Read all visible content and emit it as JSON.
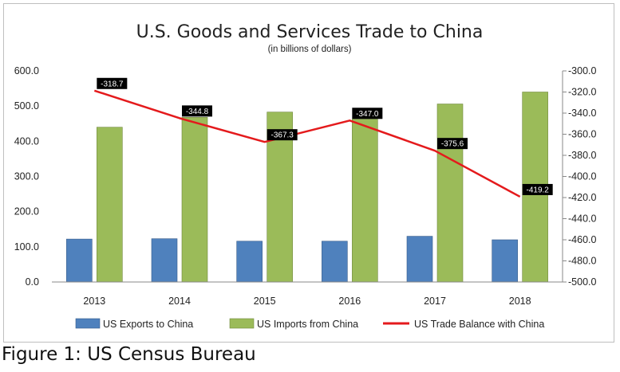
{
  "caption": "Figure 1: US Census Bureau",
  "chart_data": {
    "type": "bar",
    "title": "U.S. Goods and Services Trade  to China",
    "subtitle": "(in billions of dollars)",
    "categories": [
      "2013",
      "2014",
      "2015",
      "2016",
      "2017",
      "2018"
    ],
    "series": [
      {
        "name": "US Exports to China",
        "type": "bar",
        "axis": "left",
        "color": "#4f81bd",
        "values": [
          122.0,
          123.0,
          116.0,
          116.0,
          130.0,
          120.0
        ]
      },
      {
        "name": "US Imports from China",
        "type": "bar",
        "axis": "left",
        "color": "#9bbb59",
        "values": [
          440.0,
          468.0,
          483.0,
          463.0,
          506.0,
          540.0
        ]
      },
      {
        "name": "US Trade Balance with China",
        "type": "line",
        "axis": "right",
        "color": "#e41a1c",
        "values": [
          -318.7,
          -344.8,
          -367.3,
          -347.0,
          -375.6,
          -419.2
        ],
        "labels": [
          "-318.7",
          "-344.8",
          "-367.3",
          "-347.0",
          "-375.6",
          "-419.2"
        ]
      }
    ],
    "left_axis": {
      "min": 0,
      "max": 600,
      "step": 100,
      "ticks": [
        "0.0",
        "100.0",
        "200.0",
        "300.0",
        "400.0",
        "500.0",
        "600.0"
      ]
    },
    "right_axis": {
      "min": -500,
      "max": -300,
      "step": 20,
      "ticks": [
        "-500.0",
        "-480.0",
        "-460.0",
        "-440.0",
        "-420.0",
        "-400.0",
        "-380.0",
        "-360.0",
        "-340.0",
        "-320.0",
        "-300.0"
      ]
    },
    "grid": false,
    "legend": "bottom"
  }
}
